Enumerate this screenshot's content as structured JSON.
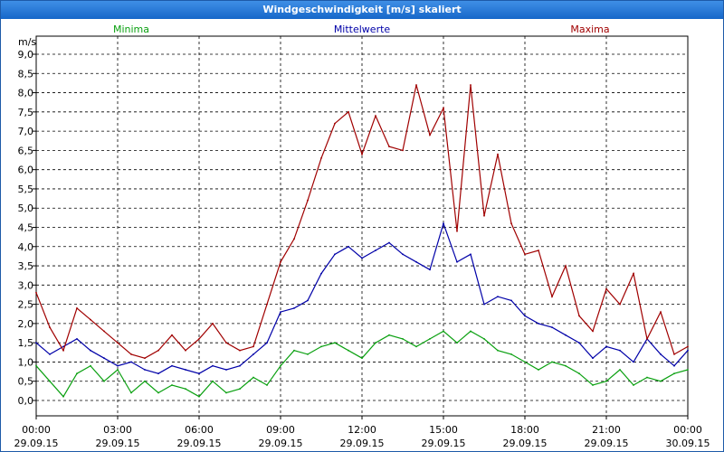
{
  "window": {
    "title": "Windgeschwindigkeit [m/s] skaliert"
  },
  "chart_data": {
    "type": "line",
    "title": "Windgeschwindigkeit [m/s] skaliert",
    "ylabel": "m/s",
    "ylim": [
      0,
      9
    ],
    "xlim_hours": [
      0,
      24
    ],
    "grid": true,
    "legend_placement": "top",
    "y_ticks": [
      "0,0",
      "0,5",
      "1,0",
      "1,5",
      "2,0",
      "2,5",
      "3,0",
      "3,5",
      "4,0",
      "4,5",
      "5,0",
      "5,5",
      "6,0",
      "6,5",
      "7,0",
      "7,5",
      "8,0",
      "8,5",
      "9,0"
    ],
    "x_ticks": [
      {
        "time": "00:00",
        "date": "29.09.15"
      },
      {
        "time": "03:00",
        "date": "29.09.15"
      },
      {
        "time": "06:00",
        "date": "29.09.15"
      },
      {
        "time": "09:00",
        "date": "29.09.15"
      },
      {
        "time": "12:00",
        "date": "29.09.15"
      },
      {
        "time": "15:00",
        "date": "29.09.15"
      },
      {
        "time": "18:00",
        "date": "29.09.15"
      },
      {
        "time": "21:00",
        "date": "29.09.15"
      },
      {
        "time": "00:00",
        "date": "30.09.15"
      }
    ],
    "series": [
      {
        "name": "Minima",
        "color": "#0aa010",
        "x": [
          0,
          0.5,
          1,
          1.5,
          2,
          2.5,
          3,
          3.5,
          4,
          4.5,
          5,
          5.5,
          6,
          6.5,
          7,
          7.5,
          8,
          8.5,
          9,
          9.5,
          10,
          10.5,
          11,
          11.5,
          12,
          12.5,
          13,
          13.5,
          14,
          14.5,
          15,
          15.5,
          16,
          16.5,
          17,
          17.5,
          18,
          18.5,
          19,
          19.5,
          20,
          20.5,
          21,
          21.5,
          22,
          22.5,
          23,
          23.5,
          24
        ],
        "values": [
          0.9,
          0.5,
          0.1,
          0.7,
          0.9,
          0.5,
          0.8,
          0.2,
          0.5,
          0.2,
          0.4,
          0.3,
          0.1,
          0.5,
          0.2,
          0.3,
          0.6,
          0.4,
          0.9,
          1.3,
          1.2,
          1.4,
          1.5,
          1.3,
          1.1,
          1.5,
          1.7,
          1.6,
          1.4,
          1.6,
          1.8,
          1.5,
          1.8,
          1.6,
          1.3,
          1.2,
          1.0,
          0.8,
          1.0,
          0.9,
          0.7,
          0.4,
          0.5,
          0.8,
          0.4,
          0.6,
          0.5,
          0.7,
          0.8
        ]
      },
      {
        "name": "Mittelwerte",
        "color": "#0000a8",
        "x": [
          0,
          0.5,
          1,
          1.5,
          2,
          2.5,
          3,
          3.5,
          4,
          4.5,
          5,
          5.5,
          6,
          6.5,
          7,
          7.5,
          8,
          8.5,
          9,
          9.5,
          10,
          10.5,
          11,
          11.5,
          12,
          12.5,
          13,
          13.5,
          14,
          14.5,
          15,
          15.5,
          16,
          16.5,
          17,
          17.5,
          18,
          18.5,
          19,
          19.5,
          20,
          20.5,
          21,
          21.5,
          22,
          22.5,
          23,
          23.5,
          24
        ],
        "values": [
          1.5,
          1.2,
          1.4,
          1.6,
          1.3,
          1.1,
          0.9,
          1.0,
          0.8,
          0.7,
          0.9,
          0.8,
          0.7,
          0.9,
          0.8,
          0.9,
          1.2,
          1.5,
          2.3,
          2.4,
          2.6,
          3.3,
          3.8,
          4.0,
          3.7,
          3.9,
          4.1,
          3.8,
          3.6,
          3.4,
          4.6,
          3.6,
          3.8,
          2.5,
          2.7,
          2.6,
          2.2,
          2.0,
          1.9,
          1.7,
          1.5,
          1.1,
          1.4,
          1.3,
          1.0,
          1.6,
          1.2,
          0.9,
          1.3
        ]
      },
      {
        "name": "Maxima",
        "color": "#a00000",
        "x": [
          0,
          0.5,
          1,
          1.5,
          2,
          2.5,
          3,
          3.5,
          4,
          4.5,
          5,
          5.5,
          6,
          6.5,
          7,
          7.5,
          8,
          8.5,
          9,
          9.5,
          10,
          10.5,
          11,
          11.5,
          12,
          12.5,
          13,
          13.5,
          14,
          14.5,
          15,
          15.5,
          16,
          16.5,
          17,
          17.5,
          18,
          18.5,
          19,
          19.5,
          20,
          20.5,
          21,
          21.5,
          22,
          22.5,
          23,
          23.5,
          24
        ],
        "values": [
          2.8,
          1.9,
          1.3,
          2.4,
          2.1,
          1.8,
          1.5,
          1.2,
          1.1,
          1.3,
          1.7,
          1.3,
          1.6,
          2.0,
          1.5,
          1.3,
          1.4,
          2.5,
          3.6,
          4.2,
          5.2,
          6.3,
          7.2,
          7.5,
          6.4,
          7.4,
          6.6,
          6.5,
          8.2,
          6.9,
          7.6,
          4.4,
          8.2,
          4.8,
          6.4,
          4.6,
          3.8,
          3.9,
          2.7,
          3.5,
          2.2,
          1.8,
          2.9,
          2.5,
          3.3,
          1.6,
          2.3,
          1.2,
          1.4
        ]
      }
    ]
  }
}
